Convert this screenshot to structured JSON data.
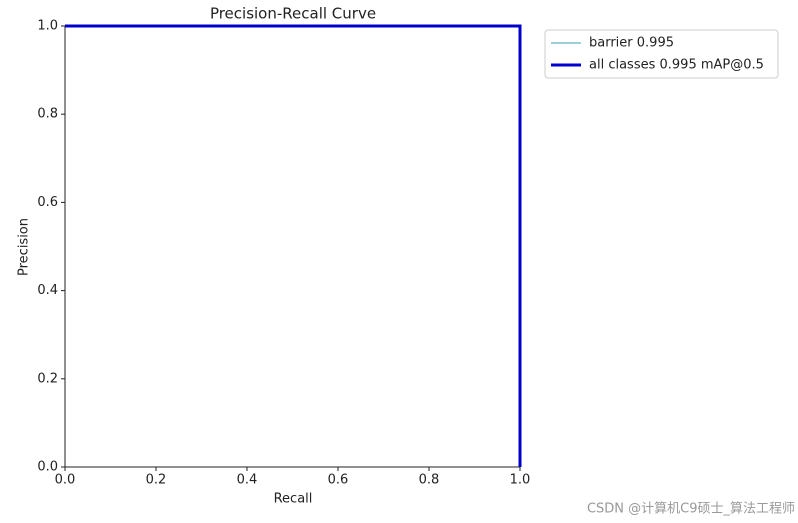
{
  "chart_data": {
    "type": "line",
    "title": "Precision-Recall Curve",
    "x_label": "Recall",
    "y_label": "Precision",
    "x": [
      0,
      1,
      1
    ],
    "series": [
      {
        "name": "barrier 0.995",
        "color": "#3a9cb5",
        "width": 1,
        "values": [
          1,
          1,
          0
        ]
      },
      {
        "name": "all classes 0.995 mAP@0.5",
        "color": "#0000cc",
        "width": 3,
        "values": [
          1,
          1,
          0
        ]
      }
    ],
    "xlim": [
      0,
      1
    ],
    "ylim": [
      0,
      1
    ],
    "xticks": [
      {
        "value": 0,
        "label": "0.0"
      },
      0.2,
      0.4,
      0.6,
      0.8,
      {
        "value": 1,
        "label": "1.0"
      }
    ],
    "yticks": [
      {
        "value": 0,
        "label": "0.0"
      },
      0.2,
      0.4,
      0.6,
      0.8,
      {
        "value": 1,
        "label": "1.0"
      }
    ],
    "legend": "outside-upper-right",
    "watermark": "CSDN @计算机C9硕士_算法工程师"
  }
}
